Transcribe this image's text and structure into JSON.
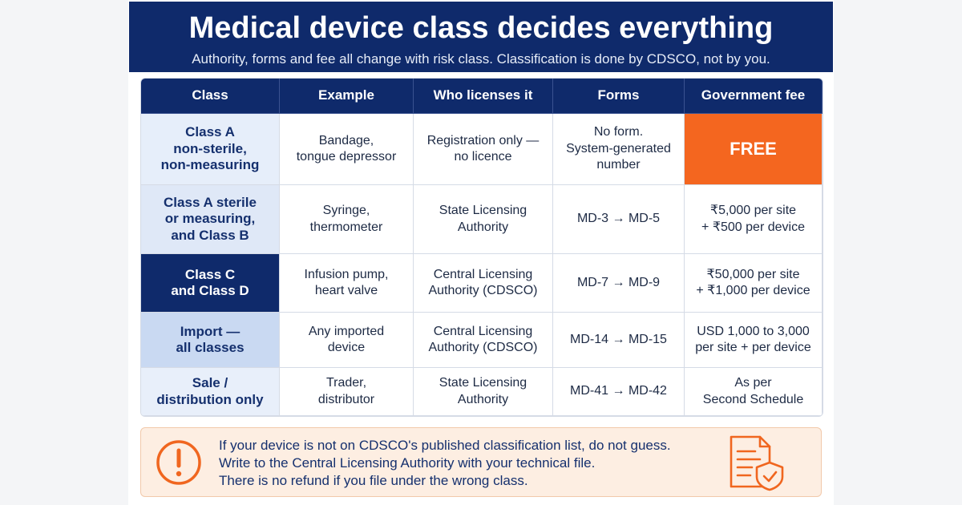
{
  "header": {
    "title": "Medical device class decides everything",
    "subtitle": "Authority, forms and fee all change with risk class. Classification is done by CDSCO, not by you."
  },
  "table": {
    "columns": [
      "Class",
      "Example",
      "Who licenses it",
      "Forms",
      "Government fee"
    ],
    "rows": [
      [
        [
          "Class A",
          "non-sterile,",
          "non-measuring"
        ],
        [
          "Bandage,",
          "tongue depressor"
        ],
        [
          "Registration only —",
          "no licence"
        ],
        [
          "No form.",
          "System-generated",
          "number"
        ],
        [
          "FREE"
        ]
      ],
      [
        [
          "Class A sterile",
          "or measuring,",
          "and Class B"
        ],
        [
          "Syringe,",
          "thermometer"
        ],
        [
          "State Licensing",
          "Authority"
        ],
        [
          "MD-3 → MD-5"
        ],
        [
          "₹5,000 per site",
          "+ ₹500 per device"
        ]
      ],
      [
        [
          "Class C",
          "and Class D"
        ],
        [
          "Infusion pump,",
          "heart valve"
        ],
        [
          "Central Licensing",
          "Authority (CDSCO)"
        ],
        [
          "MD-7 → MD-9"
        ],
        [
          "₹50,000 per site",
          "+ ₹1,000 per device"
        ]
      ],
      [
        [
          "Import —",
          "all classes"
        ],
        [
          "Any imported",
          "device"
        ],
        [
          "Central Licensing",
          "Authority (CDSCO)"
        ],
        [
          "MD-14 → MD-15"
        ],
        [
          "USD 1,000 to 3,000",
          "per site + per device"
        ]
      ],
      [
        [
          "Sale /",
          "distribution only"
        ],
        [
          "Trader,",
          "distributor"
        ],
        [
          "State Licensing",
          "Authority"
        ],
        [
          "MD-41 → MD-42"
        ],
        [
          "As per",
          "Second Schedule"
        ]
      ]
    ]
  },
  "notice": {
    "lines": [
      "If your device is not on CDSCO's published classification list, do not guess.",
      "Write to the Central Licensing Authority with your technical file.",
      "There is no refund if you file under the wrong class."
    ]
  }
}
